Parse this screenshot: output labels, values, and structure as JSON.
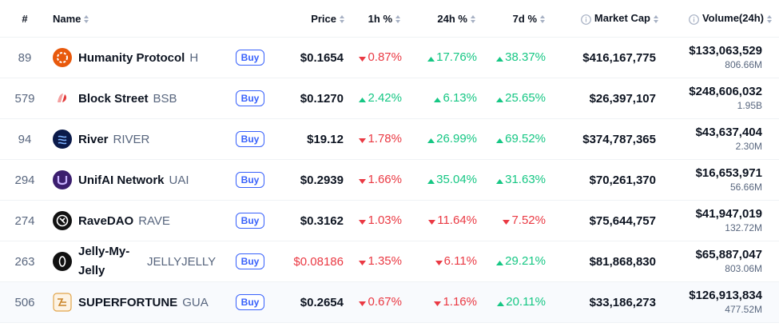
{
  "header": {
    "rank": "#",
    "name": "Name",
    "price": "Price",
    "h1": "1h %",
    "h24": "24h %",
    "d7": "7d %",
    "market_cap": "Market Cap",
    "volume": "Volume(24h)"
  },
  "buy_label": "Buy",
  "colors": {
    "up": "#16c784",
    "down": "#ea3943",
    "accent": "#3861fb"
  },
  "rows": [
    {
      "rank": "89",
      "name": "Humanity Protocol",
      "symbol": "H",
      "logo": "humanity-logo",
      "price": "$0.1654",
      "price_dir": "neutral",
      "h1": "0.87%",
      "h1_dir": "down",
      "h24": "17.76%",
      "h24_dir": "up",
      "d7": "38.37%",
      "d7_dir": "up",
      "market_cap": "$416,167,775",
      "volume_usd": "$133,063,529",
      "volume_token": "806.66M"
    },
    {
      "rank": "579",
      "name": "Block Street",
      "symbol": "BSB",
      "logo": "block-street-logo",
      "price": "$0.1270",
      "price_dir": "neutral",
      "h1": "2.42%",
      "h1_dir": "up",
      "h24": "6.13%",
      "h24_dir": "up",
      "d7": "25.65%",
      "d7_dir": "up",
      "market_cap": "$26,397,107",
      "volume_usd": "$248,606,032",
      "volume_token": "1.95B"
    },
    {
      "rank": "94",
      "name": "River",
      "symbol": "RIVER",
      "logo": "river-logo",
      "price": "$19.12",
      "price_dir": "neutral",
      "h1": "1.78%",
      "h1_dir": "down",
      "h24": "26.99%",
      "h24_dir": "up",
      "d7": "69.52%",
      "d7_dir": "up",
      "market_cap": "$374,787,365",
      "volume_usd": "$43,637,404",
      "volume_token": "2.30M"
    },
    {
      "rank": "294",
      "name": "UnifAI Network",
      "symbol": "UAI",
      "logo": "unifai-logo",
      "price": "$0.2939",
      "price_dir": "neutral",
      "h1": "1.66%",
      "h1_dir": "down",
      "h24": "35.04%",
      "h24_dir": "up",
      "d7": "31.63%",
      "d7_dir": "up",
      "market_cap": "$70,261,370",
      "volume_usd": "$16,653,971",
      "volume_token": "56.66M"
    },
    {
      "rank": "274",
      "name": "RaveDAO",
      "symbol": "RAVE",
      "logo": "ravedao-logo",
      "price": "$0.3162",
      "price_dir": "neutral",
      "h1": "1.03%",
      "h1_dir": "down",
      "h24": "11.64%",
      "h24_dir": "down",
      "d7": "7.52%",
      "d7_dir": "down",
      "market_cap": "$75,644,757",
      "volume_usd": "$41,947,019",
      "volume_token": "132.72M"
    },
    {
      "rank": "263",
      "name": "Jelly-My-Jelly",
      "symbol": "JELLYJELLY",
      "logo": "jelly-logo",
      "price": "$0.08186",
      "price_dir": "down",
      "h1": "1.35%",
      "h1_dir": "down",
      "h24": "6.11%",
      "h24_dir": "down",
      "d7": "29.21%",
      "d7_dir": "up",
      "market_cap": "$81,868,830",
      "volume_usd": "$65,887,047",
      "volume_token": "803.06M"
    },
    {
      "rank": "506",
      "name": "SUPERFORTUNE",
      "symbol": "GUA",
      "logo": "superfortune-logo",
      "price": "$0.2654",
      "price_dir": "neutral",
      "h1": "0.67%",
      "h1_dir": "down",
      "h24": "1.16%",
      "h24_dir": "down",
      "d7": "20.11%",
      "d7_dir": "up",
      "market_cap": "$33,186,273",
      "volume_usd": "$126,913,834",
      "volume_token": "477.52M"
    }
  ]
}
